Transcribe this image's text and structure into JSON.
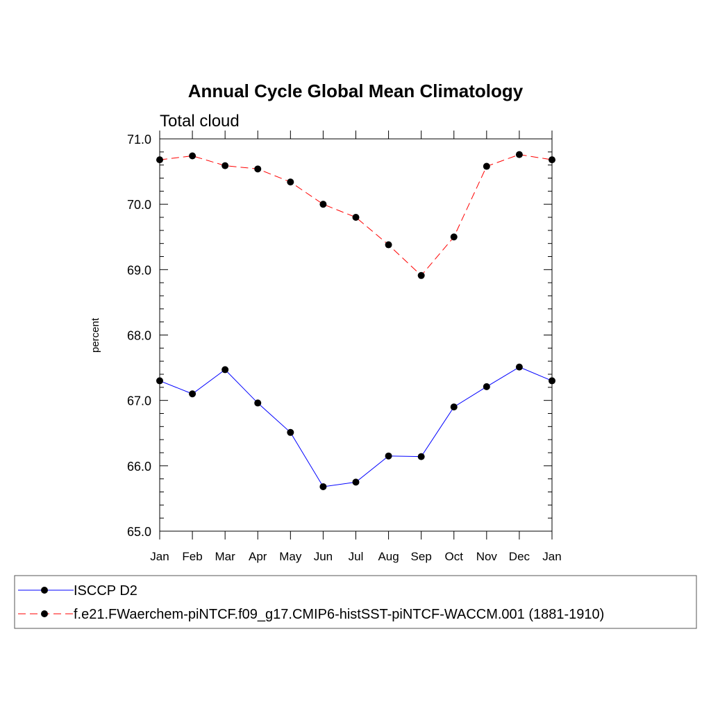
{
  "chart_data": {
    "type": "line",
    "title": "Annual Cycle Global Mean Climatology",
    "subtitle": "Total cloud",
    "xlabel": "",
    "ylabel": "percent",
    "categories": [
      "Jan",
      "Feb",
      "Mar",
      "Apr",
      "May",
      "Jun",
      "Jul",
      "Aug",
      "Sep",
      "Oct",
      "Nov",
      "Dec",
      "Jan"
    ],
    "ylim": [
      65.0,
      71.0
    ],
    "yticks": [
      "65.0",
      "66.0",
      "67.0",
      "68.0",
      "69.0",
      "70.0",
      "71.0"
    ],
    "series": [
      {
        "name": "ISCCP D2",
        "color": "#0000ff",
        "line_style": "solid",
        "marker": "filled-circle",
        "values": [
          67.3,
          67.1,
          67.47,
          66.96,
          66.51,
          65.68,
          65.75,
          66.15,
          66.14,
          66.9,
          67.21,
          67.51,
          67.3
        ]
      },
      {
        "name": "f.e21.FWaerchem-piNTCF.f09_g17.CMIP6-histSST-piNTCF-WACCM.001 (1881-1910)",
        "color": "#ff0000",
        "line_style": "dashed",
        "marker": "filled-circle",
        "values": [
          70.68,
          70.74,
          70.59,
          70.54,
          70.34,
          70.0,
          69.8,
          69.38,
          68.91,
          69.5,
          70.58,
          70.76,
          70.68
        ]
      }
    ],
    "grid": false,
    "legend_position": "bottom"
  }
}
